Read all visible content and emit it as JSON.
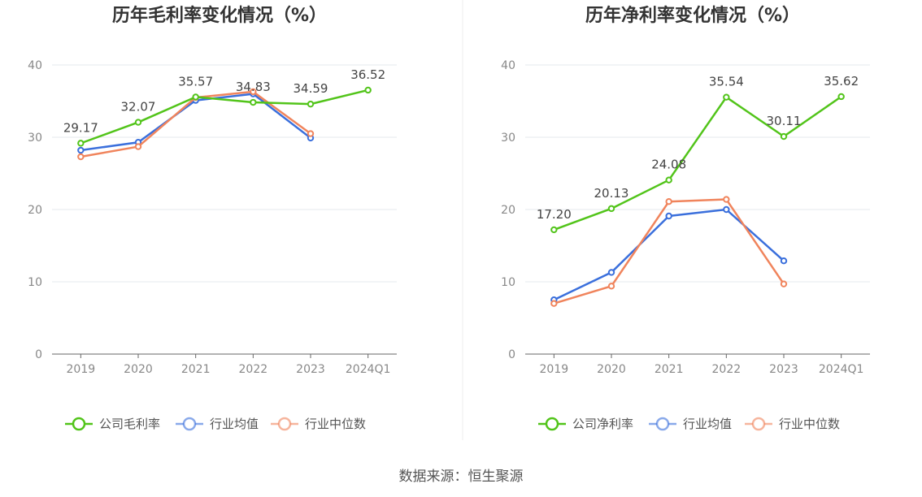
{
  "source_text": "数据来源：恒生聚源",
  "legend_marker_shape": "circle-line",
  "chart_data": [
    {
      "type": "line",
      "title": "历年毛利率变化情况（%）",
      "categories": [
        "2019",
        "2020",
        "2021",
        "2022",
        "2023",
        "2024Q1"
      ],
      "ylim": [
        0,
        40
      ],
      "yticks": [
        0,
        10,
        20,
        30,
        40
      ],
      "grid": true,
      "legend_position": "bottom",
      "series": [
        {
          "name": "公司毛利率",
          "color": "#52c41a",
          "values": [
            29.17,
            32.07,
            35.57,
            34.83,
            34.59,
            36.52
          ],
          "labels": [
            "29.17",
            "32.07",
            "35.57",
            "34.83",
            "34.59",
            "36.52"
          ]
        },
        {
          "name": "行业均值",
          "color": "#3a6fdc",
          "values": [
            28.2,
            29.3,
            35.1,
            36.0,
            29.9,
            null
          ],
          "labels": []
        },
        {
          "name": "行业中位数",
          "color": "#f0845c",
          "values": [
            27.3,
            28.7,
            35.5,
            36.3,
            30.5,
            null
          ],
          "labels": []
        }
      ]
    },
    {
      "type": "line",
      "title": "历年净利率变化情况（%）",
      "categories": [
        "2019",
        "2020",
        "2021",
        "2022",
        "2023",
        "2024Q1"
      ],
      "ylim": [
        0,
        40
      ],
      "yticks": [
        0,
        10,
        20,
        30,
        40
      ],
      "grid": true,
      "legend_position": "bottom",
      "series": [
        {
          "name": "公司净利率",
          "color": "#52c41a",
          "values": [
            17.2,
            20.13,
            24.08,
            35.54,
            30.11,
            35.62
          ],
          "labels": [
            "17.20",
            "20.13",
            "24.08",
            "35.54",
            "30.11",
            "35.62"
          ]
        },
        {
          "name": "行业均值",
          "color": "#3a6fdc",
          "values": [
            7.5,
            11.3,
            19.1,
            20.0,
            12.9,
            null
          ],
          "labels": []
        },
        {
          "name": "行业中位数",
          "color": "#f0845c",
          "values": [
            7.0,
            9.4,
            21.1,
            21.4,
            9.7,
            null
          ],
          "labels": []
        }
      ]
    }
  ]
}
